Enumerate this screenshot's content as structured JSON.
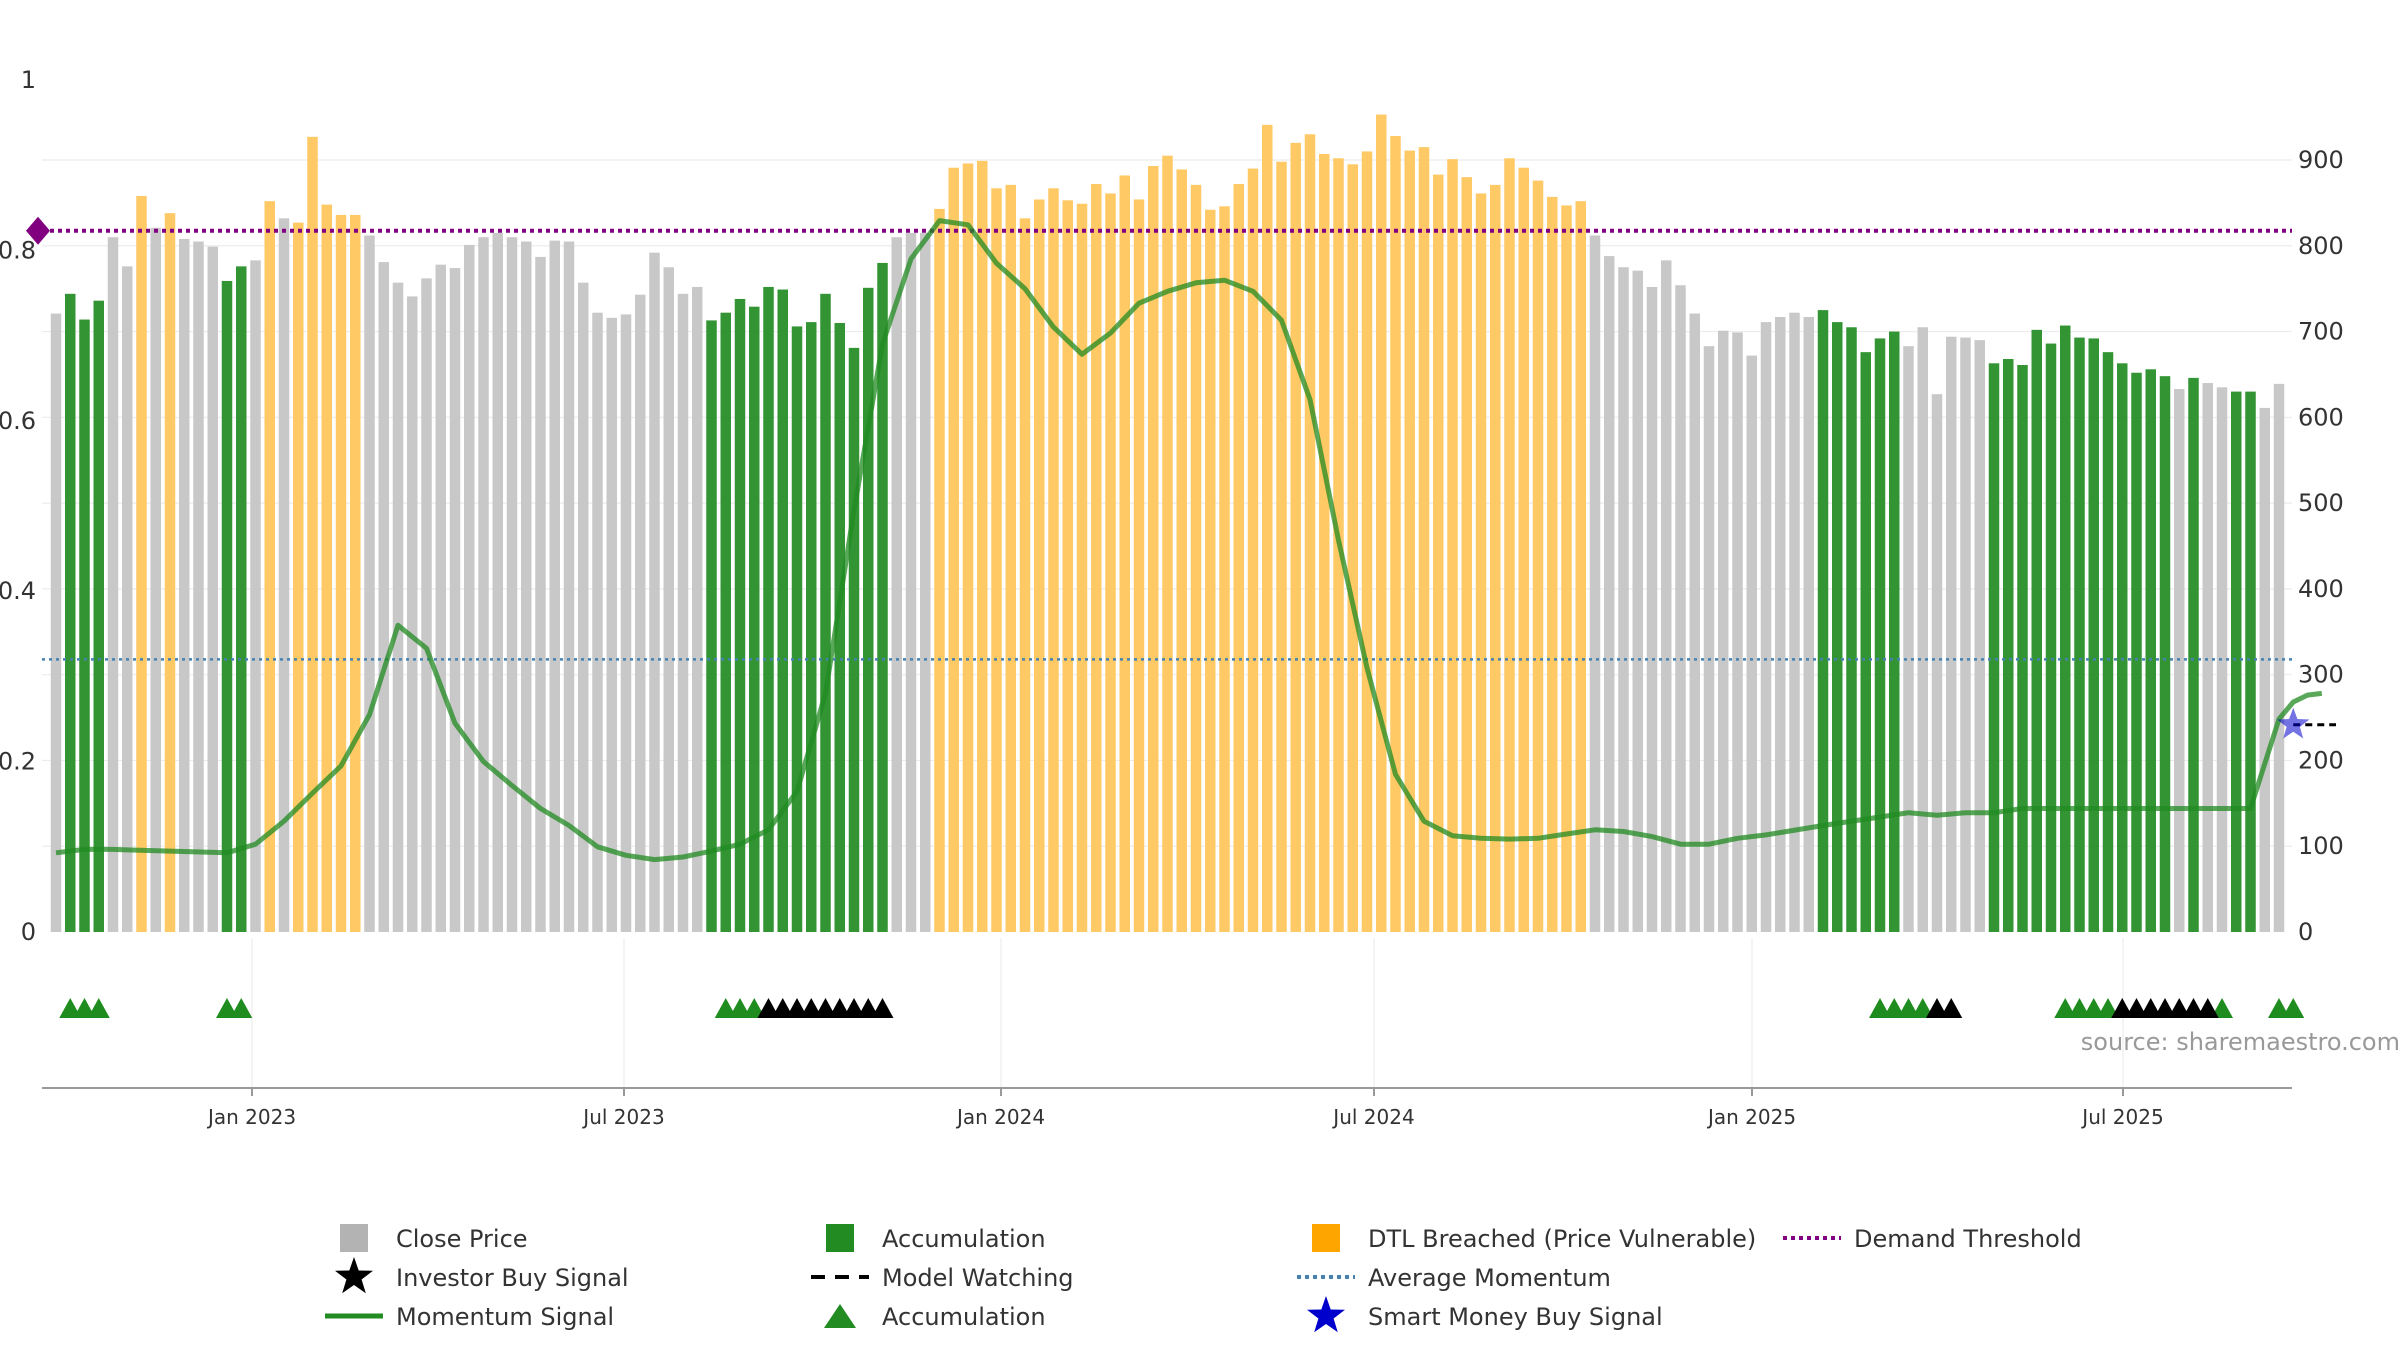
{
  "colors": {
    "close": "#c8c8c8",
    "accumulation": "#228b22",
    "dtl": "#ffc966",
    "dtl_legend": "#ffa500",
    "momentum": "#228b22",
    "avg_momentum": "#4682b4",
    "demand": "#800080",
    "smart_money": "#0000cd"
  },
  "chart_data": {
    "type": "bar",
    "title": "",
    "source_text": "source: sharemaestro.com",
    "x_tick_labels": [
      "Jan 2023",
      "Jul 2023",
      "Jan 2024",
      "Jul 2024",
      "Jan 2025",
      "Jul 2025"
    ],
    "left_axis": {
      "range": [
        0,
        1
      ],
      "tick_values": [
        0,
        0.2,
        0.4,
        0.6,
        0.8,
        1
      ],
      "tick_labels": [
        "0",
        "0.2",
        "0.4",
        "0.6",
        "0.8",
        "1"
      ]
    },
    "right_axis": {
      "range": [
        0,
        1000
      ],
      "tick_values": [
        0,
        100,
        200,
        300,
        400,
        500,
        600,
        700,
        800,
        900
      ],
      "tick_labels": [
        "0",
        "100",
        "200",
        "300",
        "400",
        "500",
        "600",
        "700",
        "800",
        "900"
      ]
    },
    "price_series": {
      "name": "Close Price",
      "unit": "right_axis",
      "categories_note": "weekly bars, Oct 2022 – Sep 2025",
      "values": [
        721,
        744,
        714,
        736,
        810,
        776,
        858,
        821,
        838,
        808,
        805,
        799,
        759,
        776,
        783,
        852,
        832,
        827,
        927,
        848,
        836,
        836,
        812,
        781,
        757,
        741,
        762,
        778,
        774,
        801,
        810,
        815,
        810,
        805,
        787,
        806,
        805,
        757,
        722,
        716,
        720,
        743,
        792,
        775,
        744,
        752,
        713,
        722,
        738,
        729,
        752,
        749,
        706,
        711,
        744,
        710,
        681,
        751,
        780,
        810,
        815,
        815,
        843,
        891,
        896,
        899,
        867,
        871,
        832,
        854,
        867,
        853,
        849,
        872,
        861,
        882,
        854,
        893,
        905,
        889,
        871,
        842,
        846,
        872,
        890,
        941,
        898,
        920,
        930,
        907,
        902,
        895,
        910,
        953,
        928,
        911,
        915,
        883,
        901,
        880,
        861,
        871,
        902,
        891,
        876,
        857,
        847,
        852,
        812,
        788,
        775,
        771,
        752,
        783,
        754,
        721,
        683,
        701,
        699,
        672,
        711,
        717,
        722,
        717,
        725,
        711,
        705,
        676,
        692,
        700,
        683,
        705,
        627,
        694,
        693,
        690,
        663,
        668,
        661,
        702,
        686,
        707,
        693,
        692,
        676,
        663,
        652,
        656,
        648,
        633,
        646,
        640,
        635,
        630,
        630,
        611,
        639
      ],
      "states": [
        "c",
        "a",
        "a",
        "a",
        "c",
        "c",
        "d",
        "c",
        "d",
        "c",
        "c",
        "c",
        "a",
        "a",
        "c",
        "d",
        "c",
        "d",
        "d",
        "d",
        "d",
        "d",
        "c",
        "c",
        "c",
        "c",
        "c",
        "c",
        "c",
        "c",
        "c",
        "c",
        "c",
        "c",
        "c",
        "c",
        "c",
        "c",
        "c",
        "c",
        "c",
        "c",
        "c",
        "c",
        "c",
        "c",
        "a",
        "a",
        "a",
        "a",
        "a",
        "a",
        "a",
        "a",
        "a",
        "a",
        "a",
        "a",
        "a",
        "c",
        "c",
        "c",
        "d",
        "d",
        "d",
        "d",
        "d",
        "d",
        "d",
        "d",
        "d",
        "d",
        "d",
        "d",
        "d",
        "d",
        "d",
        "d",
        "d",
        "d",
        "d",
        "d",
        "d",
        "d",
        "d",
        "d",
        "d",
        "d",
        "d",
        "d",
        "d",
        "d",
        "d",
        "d",
        "d",
        "d",
        "d",
        "d",
        "d",
        "d",
        "d",
        "d",
        "d",
        "d",
        "d",
        "d",
        "d",
        "d",
        "c",
        "c",
        "c",
        "c",
        "c",
        "c",
        "c",
        "c",
        "c",
        "c",
        "c",
        "c",
        "c",
        "c",
        "c",
        "c",
        "a",
        "a",
        "a",
        "a",
        "a",
        "a",
        "c",
        "c",
        "c",
        "c",
        "c",
        "c",
        "a",
        "a",
        "a",
        "a",
        "a",
        "a",
        "a",
        "a",
        "a",
        "a",
        "a",
        "a",
        "a",
        "c",
        "a",
        "c",
        "c",
        "a",
        "a",
        "c",
        "c"
      ],
      "state_key": {
        "c": "Close Price",
        "a": "Accumulation",
        "d": "DTL Breached (Price Vulnerable)"
      }
    },
    "momentum_series": {
      "name": "Momentum Signal",
      "unit": "left_axis",
      "x_index": [
        0,
        2,
        4,
        8,
        12,
        14,
        16,
        18,
        20,
        22,
        24,
        26,
        28,
        30,
        32,
        34,
        36,
        38,
        40,
        42,
        44,
        46,
        48,
        50,
        52,
        54,
        56,
        58,
        60,
        62,
        64,
        66,
        68,
        70,
        72,
        74,
        76,
        78,
        80,
        82,
        84,
        86,
        88,
        90,
        92,
        94,
        96,
        98,
        100,
        102,
        104,
        106,
        108,
        110,
        112,
        114,
        116,
        118,
        120,
        124,
        128,
        130,
        132,
        134,
        136,
        138,
        140,
        142,
        144,
        146,
        148,
        150,
        152,
        154,
        156,
        157,
        158,
        159
      ],
      "values": [
        0.093,
        0.097,
        0.097,
        0.095,
        0.093,
        0.103,
        0.13,
        0.163,
        0.195,
        0.255,
        0.36,
        0.333,
        0.245,
        0.2,
        0.172,
        0.145,
        0.125,
        0.1,
        0.09,
        0.085,
        0.088,
        0.095,
        0.103,
        0.12,
        0.165,
        0.28,
        0.495,
        0.69,
        0.79,
        0.835,
        0.83,
        0.785,
        0.755,
        0.71,
        0.678,
        0.703,
        0.738,
        0.752,
        0.762,
        0.765,
        0.752,
        0.718,
        0.625,
        0.46,
        0.31,
        0.185,
        0.13,
        0.113,
        0.11,
        0.109,
        0.11,
        0.115,
        0.12,
        0.118,
        0.112,
        0.103,
        0.103,
        0.11,
        0.114,
        0.125,
        0.135,
        0.14,
        0.137,
        0.14,
        0.14,
        0.145,
        0.145,
        0.145,
        0.145,
        0.145,
        0.145,
        0.145,
        0.145,
        0.145,
        0.25,
        0.27,
        0.278,
        0.28
      ]
    },
    "average_momentum": {
      "name": "Average Momentum",
      "value": 0.32
    },
    "demand_threshold": {
      "name": "Demand Threshold",
      "value": 0.823
    },
    "smart_money_signal": {
      "name": "Smart Money Buy Signal",
      "bar_index": 157,
      "value": 0.248
    },
    "signal_markers": {
      "accumulation_triangles": [
        1,
        2,
        3,
        12,
        13,
        47,
        48,
        49,
        128,
        129,
        130,
        131,
        141,
        142,
        143,
        144,
        152,
        156,
        157
      ],
      "investor_buy_stars": [
        50,
        51,
        52,
        53,
        54,
        55,
        56,
        57,
        58,
        132,
        133,
        145,
        146,
        147,
        148,
        149,
        150,
        151
      ]
    },
    "legend": [
      {
        "label": "Close Price",
        "symbol": "square",
        "color": "#b3b3b3"
      },
      {
        "label": "Investor Buy Signal",
        "symbol": "star",
        "color": "#000000"
      },
      {
        "label": "Momentum Signal",
        "symbol": "line",
        "color": "#228b22"
      },
      {
        "label": "Accumulation",
        "symbol": "square",
        "color": "#228b22"
      },
      {
        "label": "Model Watching",
        "symbol": "dash",
        "color": "#000000"
      },
      {
        "label": "Accumulation",
        "symbol": "triangle",
        "color": "#228b22"
      },
      {
        "label": "DTL Breached (Price Vulnerable)",
        "symbol": "square",
        "color": "#ffa500"
      },
      {
        "label": "Average Momentum",
        "symbol": "dotline",
        "color": "#4682b4"
      },
      {
        "label": "Smart Money Buy Signal",
        "symbol": "star",
        "color": "#0000cd"
      },
      {
        "label": "Demand Threshold",
        "symbol": "dotline",
        "color": "#800080"
      }
    ]
  }
}
